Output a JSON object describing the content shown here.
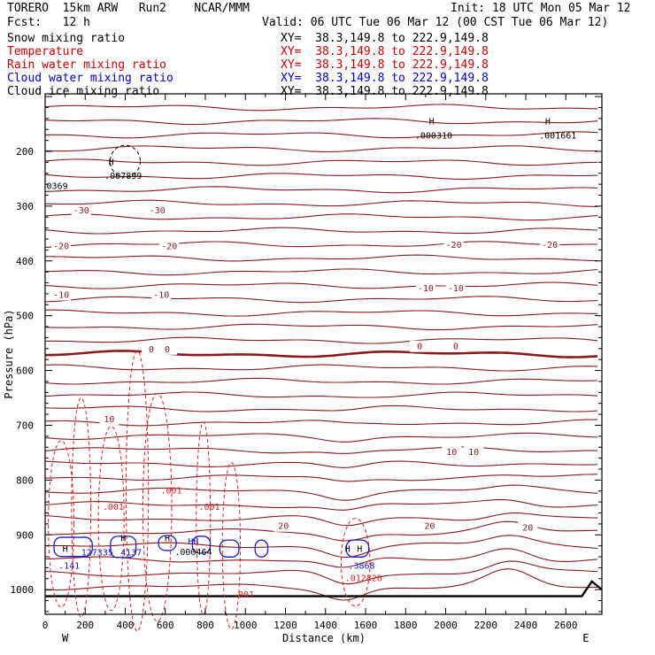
{
  "header": {
    "model": "TORERO  15km ARW   Run2    NCAR/MMM",
    "init": "Init: 18 UTC Mon 05 Mar 12",
    "fcst": "Fcst:   12 h",
    "valid": "Valid: 06 UTC Tue 06 Mar 12 (00 CST Tue 06 Mar 12)"
  },
  "legend": [
    {
      "name": "Snow mixing ratio",
      "xy": "XY=  38.3,149.8 to 222.9,149.8",
      "color": "#000000"
    },
    {
      "name": "Temperature",
      "xy": "XY=  38.3,149.8 to 222.9,149.8",
      "color": "#cc0000"
    },
    {
      "name": "Rain water mixing ratio",
      "xy": "XY=  38.3,149.8 to 222.9,149.8",
      "color": "#cc0000"
    },
    {
      "name": "Cloud water mixing ratio",
      "xy": "XY=  38.3,149.8 to 222.9,149.8",
      "color": "#0000cc"
    },
    {
      "name": "Cloud ice mixing ratio",
      "xy": "XY=  38.3,149.8 to 222.9,149.8",
      "color": "#000000"
    }
  ],
  "colors": {
    "temperature_line": "#8b1a1a",
    "freezing_line": "#8b1a1a",
    "rain": "#dd2222",
    "cloud_water": "#1a1acc",
    "snow": "#000000",
    "terrain": "#000000"
  },
  "chart_data": {
    "type": "line",
    "xlabel": "Distance (km)",
    "ylabel": "Pressure (hPa)",
    "xlim": [
      0,
      2780
    ],
    "ylim": [
      1045,
      95
    ],
    "x_ticks": [
      0,
      200,
      400,
      600,
      800,
      1000,
      1200,
      1400,
      1600,
      1800,
      2000,
      2200,
      2400,
      2600
    ],
    "y_ticks": [
      200,
      300,
      400,
      500,
      600,
      700,
      800,
      900,
      1000
    ],
    "left_end": "W",
    "right_end": "E",
    "temperature_labels": [
      {
        "text": "-30",
        "x": 180,
        "p": 307
      },
      {
        "text": "-30",
        "x": 560,
        "p": 307
      },
      {
        "text": "-20",
        "x": 80,
        "p": 372
      },
      {
        "text": "-20",
        "x": 620,
        "p": 372
      },
      {
        "text": "-20",
        "x": 2040,
        "p": 370
      },
      {
        "text": "-20",
        "x": 2520,
        "p": 370
      },
      {
        "text": "-10",
        "x": 80,
        "p": 461
      },
      {
        "text": "-10",
        "x": 580,
        "p": 461
      },
      {
        "text": "-10",
        "x": 1900,
        "p": 449
      },
      {
        "text": "-10",
        "x": 2050,
        "p": 449
      },
      {
        "text": "0",
        "x": 530,
        "p": 560
      },
      {
        "text": "0",
        "x": 610,
        "p": 560
      },
      {
        "text": "0",
        "x": 1870,
        "p": 555
      },
      {
        "text": "0",
        "x": 2050,
        "p": 555
      },
      {
        "text": "10",
        "x": 320,
        "p": 688
      },
      {
        "text": "10",
        "x": 2030,
        "p": 748
      },
      {
        "text": "10",
        "x": 2140,
        "p": 748
      },
      {
        "text": "20",
        "x": 1190,
        "p": 883
      },
      {
        "text": "20",
        "x": 1920,
        "p": 883
      },
      {
        "text": "20",
        "x": 2410,
        "p": 886
      }
    ],
    "rain_labels": [
      {
        "text": ".001",
        "x": 630,
        "p": 818
      },
      {
        "text": ".001",
        "x": 340,
        "p": 848
      },
      {
        "text": ".001",
        "x": 820,
        "p": 848
      },
      {
        "text": ".001",
        "x": 990,
        "p": 1008
      },
      {
        "text": ".012826",
        "x": 1590,
        "p": 978
      }
    ],
    "cloud_water_labels": [
      {
        "text": ".141",
        "x": 120,
        "p": 955
      },
      {
        "text": "127335",
        "x": 260,
        "p": 931
      },
      {
        "text": "4137",
        "x": 430,
        "p": 931
      },
      {
        "text": "HH",
        "x": 740,
        "p": 911
      },
      {
        "text": ".3868",
        "x": 1580,
        "p": 955
      }
    ],
    "snow_labels": [
      {
        "text": ".007899",
        "x": 390,
        "p": 244
      },
      {
        "text": "0369",
        "x": 60,
        "p": 262
      },
      {
        "text": ".000310",
        "x": 1940,
        "p": 170
      },
      {
        "text": ".001661",
        "x": 2560,
        "p": 170
      },
      {
        "text": ".000464",
        "x": 740,
        "p": 930
      }
    ],
    "highs": [
      {
        "x": 330,
        "p": 225
      },
      {
        "x": 1930,
        "p": 151
      },
      {
        "x": 2510,
        "p": 151
      },
      {
        "x": 100,
        "p": 931
      },
      {
        "x": 390,
        "p": 912
      },
      {
        "x": 610,
        "p": 912
      },
      {
        "x": 1510,
        "p": 931
      },
      {
        "x": 1570,
        "p": 931
      }
    ]
  }
}
